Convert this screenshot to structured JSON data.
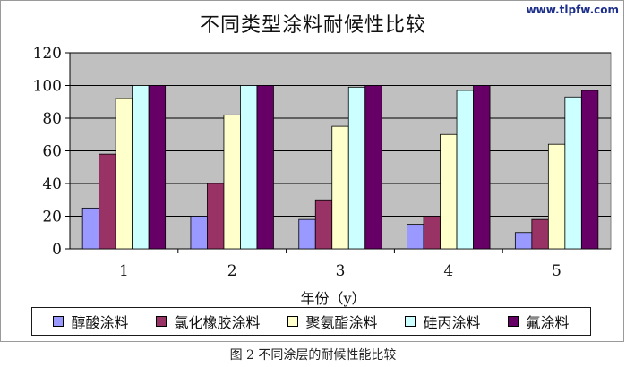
{
  "watermark": "www.tlpfw.com",
  "caption": "图 2 不同涂层的耐候性能比较",
  "chart_data": {
    "type": "bar",
    "title": "不同类型涂料耐候性比较",
    "xlabel": "年份（y）",
    "ylabel": "",
    "categories": [
      "1",
      "2",
      "3",
      "4",
      "5"
    ],
    "ylim": [
      0,
      120
    ],
    "yticks": [
      "0",
      "20",
      "40",
      "60",
      "80",
      "100",
      "120"
    ],
    "grid": true,
    "legend_position": "bottom",
    "series": [
      {
        "name": "醇酸涂料",
        "color": "#9999ff",
        "values": [
          25,
          20,
          18,
          15,
          10
        ]
      },
      {
        "name": "氯化橡胶涂料",
        "color": "#993366",
        "values": [
          58,
          40,
          30,
          20,
          18
        ]
      },
      {
        "name": "聚氨酯涂料",
        "color": "#ffffcc",
        "values": [
          92,
          82,
          75,
          70,
          64
        ]
      },
      {
        "name": "硅丙涂料",
        "color": "#ccffff",
        "values": [
          100,
          100,
          99,
          97,
          93
        ]
      },
      {
        "name": "氟涂料",
        "color": "#660066",
        "values": [
          100,
          100,
          100,
          100,
          97
        ]
      }
    ],
    "plot_background": "#c0c0c0"
  }
}
